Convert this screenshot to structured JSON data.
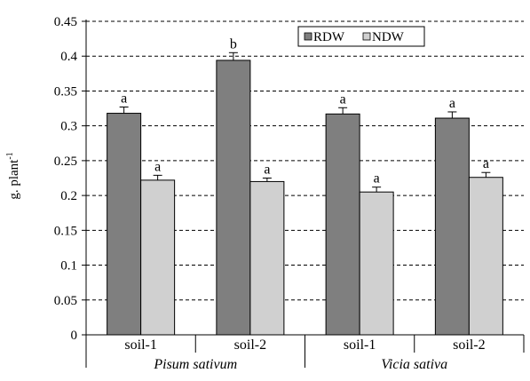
{
  "chart_data": {
    "type": "bar",
    "ylabel": "g. plant",
    "ylabel_superscript": "-1",
    "ylim": [
      0,
      0.45
    ],
    "yticks": [
      0,
      0.05,
      0.1,
      0.15,
      0.2,
      0.25,
      0.3,
      0.35,
      0.4,
      0.45
    ],
    "ytick_labels": [
      "0",
      "0.05",
      "0.1",
      "0.15",
      "0.2",
      "0.25",
      "0.3",
      "0.35",
      "0.4",
      "0.45"
    ],
    "grid": true,
    "legend_position": "top-right",
    "categories": [
      "soil-1",
      "soil-2",
      "soil-1",
      "soil-2"
    ],
    "groups": [
      {
        "label": "Pisum sativum",
        "categories": [
          0,
          1
        ]
      },
      {
        "label": "Vicia sativa",
        "categories": [
          2,
          3
        ]
      }
    ],
    "series": [
      {
        "name": "RDW",
        "color": "#7f7f7f",
        "values": [
          0.318,
          0.394,
          0.317,
          0.311
        ],
        "errors": [
          0.009,
          0.011,
          0.009,
          0.009
        ],
        "letters": [
          "a",
          "b",
          "a",
          "a"
        ]
      },
      {
        "name": "NDW",
        "color": "#d0d0d0",
        "values": [
          0.222,
          0.22,
          0.205,
          0.226
        ],
        "errors": [
          0.007,
          0.005,
          0.007,
          0.007
        ],
        "letters": [
          "a",
          "a",
          "a",
          "a"
        ]
      }
    ]
  }
}
